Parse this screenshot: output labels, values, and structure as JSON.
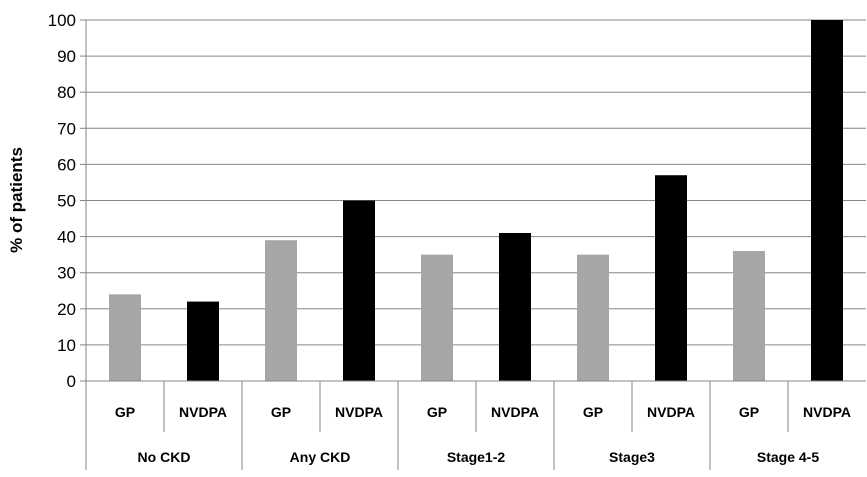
{
  "chart_data": {
    "type": "bar",
    "ylabel": "% of patients",
    "ylim": [
      0,
      100
    ],
    "yticks": [
      0,
      10,
      20,
      30,
      40,
      50,
      60,
      70,
      80,
      90,
      100
    ],
    "grid": true,
    "legend": "none",
    "groups": [
      "No CKD",
      "Any CKD",
      "Stage1-2",
      "Stage3",
      "Stage 4-5"
    ],
    "categories": [
      "GP",
      "NVDPA",
      "GP",
      "NVDPA",
      "GP",
      "NVDPA",
      "GP",
      "NVDPA",
      "GP",
      "NVDPA"
    ],
    "values": [
      24,
      22,
      39,
      50,
      35,
      41,
      35,
      57,
      36,
      100
    ],
    "colors": {
      "GP": "#a6a6a6",
      "NVDPA": "#000000"
    }
  }
}
